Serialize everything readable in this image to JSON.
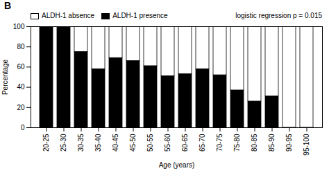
{
  "chart_data": {
    "type": "bar",
    "title": "B",
    "stacked": true,
    "legend": "upper left",
    "xlabel": "Age (years)",
    "ylabel": "Percentage",
    "annotation": "logistic regression p = 0.015",
    "categories": [
      "20-25",
      "25-30",
      "30-35",
      "35-40",
      "40-45",
      "45-50",
      "50-55",
      "55-60",
      "60-65",
      "65-70",
      "70-75",
      "75-80",
      "80-85",
      "85-90",
      "90-95",
      "95-100"
    ],
    "series": [
      {
        "name": "ALDH-1 presence",
        "color": "#000000",
        "values": [
          100,
          100,
          75,
          58,
          69,
          66,
          61,
          51,
          53,
          58,
          52,
          37,
          26,
          31,
          0,
          0
        ]
      },
      {
        "name": "ALDH-1 absence",
        "color": "#ffffff",
        "values": [
          0,
          0,
          25,
          42,
          31,
          34,
          39,
          49,
          47,
          42,
          48,
          63,
          74,
          69,
          100,
          100
        ]
      }
    ],
    "ylim": [
      0,
      100
    ],
    "yticks": [
      0,
      20,
      40,
      60,
      80,
      100
    ]
  }
}
